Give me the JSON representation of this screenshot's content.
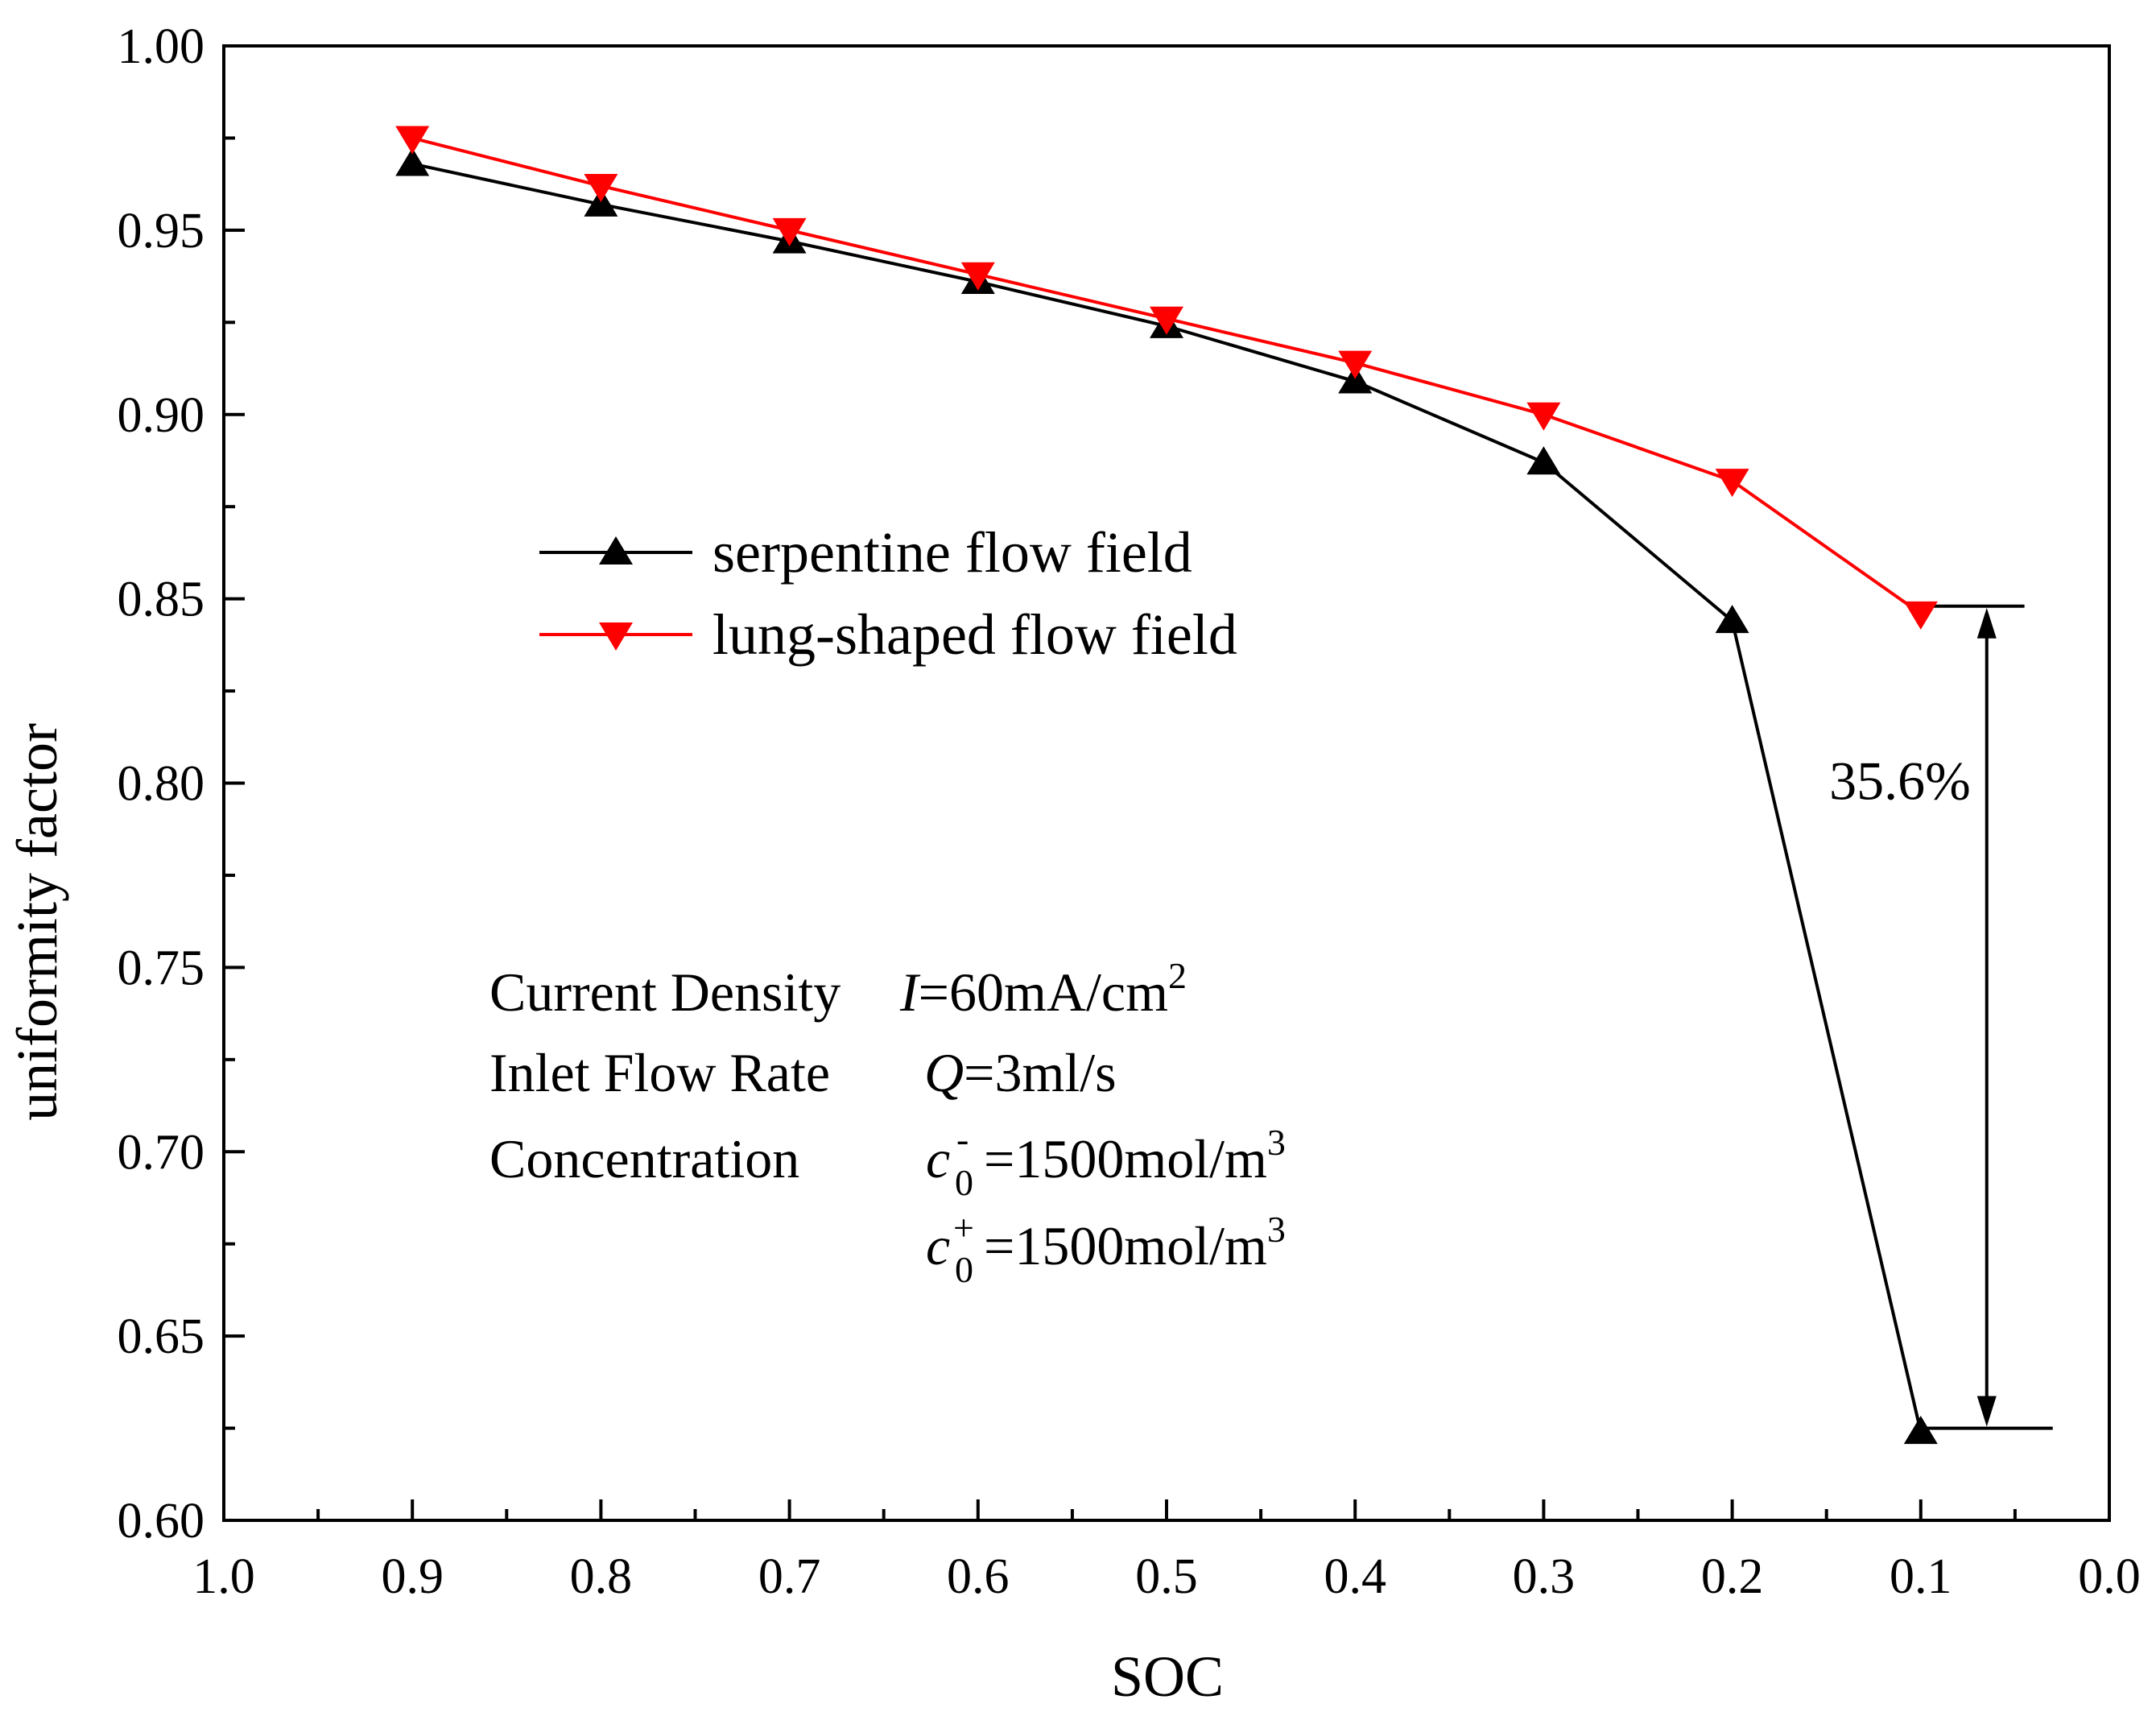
{
  "chart_data": {
    "type": "line",
    "title": "",
    "xlabel": "SOC",
    "ylabel": "uniformity factor",
    "xlim": [
      1.0,
      0.0
    ],
    "ylim": [
      0.6,
      1.0
    ],
    "x_reversed": true,
    "grid": false,
    "x_ticks": [
      "1.0",
      "0.9",
      "0.8",
      "0.7",
      "0.6",
      "0.5",
      "0.4",
      "0.3",
      "0.2",
      "0.1",
      "0.0"
    ],
    "y_ticks": [
      "0.60",
      "0.65",
      "0.70",
      "0.75",
      "0.80",
      "0.85",
      "0.90",
      "0.95",
      "1.00"
    ],
    "x": [
      0.9,
      0.8,
      0.7,
      0.6,
      0.5,
      0.4,
      0.3,
      0.2,
      0.1
    ],
    "series": [
      {
        "name": "serpentine flow field",
        "color": "#000000",
        "marker": "triangle-up",
        "values": [
          0.968,
          0.957,
          0.947,
          0.936,
          0.924,
          0.909,
          0.887,
          0.844,
          0.624
        ]
      },
      {
        "name": "lung-shaped flow field",
        "color": "#ff0000",
        "marker": "triangle-down",
        "values": [
          0.975,
          0.962,
          0.95,
          0.938,
          0.926,
          0.914,
          0.9,
          0.882,
          0.846
        ]
      }
    ],
    "legend_position": "upper-middle",
    "annotation": {
      "text": "35.6%",
      "x": 0.065,
      "y_top": 0.848,
      "y_bottom": 0.625
    },
    "conditions": {
      "current_density": {
        "label": "Current Density",
        "var": "I",
        "value": "=60mA/cm",
        "sup": "2"
      },
      "flow_rate": {
        "label": "Inlet Flow Rate",
        "var": "Q",
        "value": "=3ml/s"
      },
      "concentration": {
        "label": "Concentration",
        "var": "c",
        "sub": "0",
        "sup_neg": "-",
        "sup_pos": "+",
        "value": "=1500mol/m",
        "unit_sup": "3"
      }
    }
  }
}
